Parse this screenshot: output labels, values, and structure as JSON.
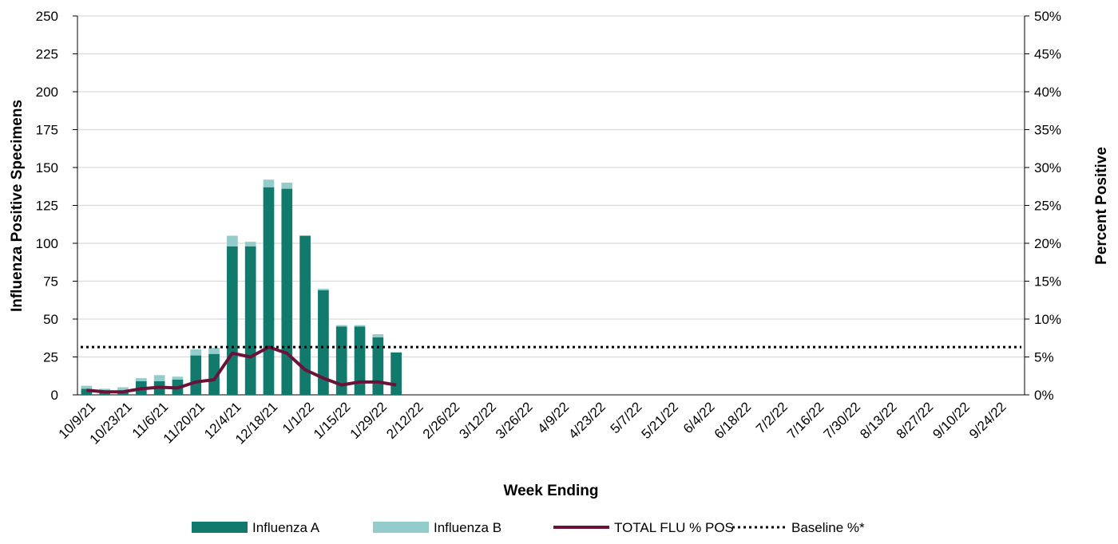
{
  "chart_data": {
    "type": "bar",
    "stacked": true,
    "x_label": "Week Ending",
    "y_label": "Influenza Positive Specimens",
    "y2_label": "Percent Positive",
    "categories": [
      "10/9/21",
      null,
      "10/23/21",
      null,
      "11/6/21",
      null,
      "11/20/21",
      null,
      "12/4/21",
      null,
      "12/18/21",
      null,
      "1/1/22",
      null,
      "1/15/22",
      null,
      "1/29/22",
      null,
      "2/12/22",
      null,
      "2/26/22",
      null,
      "3/12/22",
      null,
      "3/26/22",
      null,
      "4/9/22",
      null,
      "4/23/22",
      null,
      "5/7/22",
      null,
      "5/21/22",
      null,
      "6/4/22",
      null,
      "6/18/22",
      null,
      "7/2/22",
      null,
      "7/16/22",
      null,
      "7/30/22",
      null,
      "8/13/22",
      null,
      "8/27/22",
      null,
      "9/10/22",
      null,
      "9/24/22",
      null
    ],
    "series": [
      {
        "name": "Influenza A",
        "color": "#127a6d",
        "values": [
          4,
          3,
          3,
          9,
          9,
          10,
          26,
          27,
          98,
          98,
          137,
          136,
          105,
          69,
          45,
          45,
          38,
          28,
          null,
          null,
          null,
          null,
          null,
          null,
          null,
          null,
          null,
          null,
          null,
          null,
          null,
          null,
          null,
          null,
          null,
          null,
          null,
          null,
          null,
          null,
          null,
          null,
          null,
          null,
          null,
          null,
          null,
          null,
          null,
          null,
          null,
          null
        ]
      },
      {
        "name": "Influenza B",
        "color": "#93cccb",
        "values": [
          2,
          1,
          2,
          2,
          4,
          2,
          4,
          4,
          7,
          3,
          5,
          4,
          0,
          1,
          1,
          1,
          2,
          0,
          null,
          null,
          null,
          null,
          null,
          null,
          null,
          null,
          null,
          null,
          null,
          null,
          null,
          null,
          null,
          null,
          null,
          null,
          null,
          null,
          null,
          null,
          null,
          null,
          null,
          null,
          null,
          null,
          null,
          null,
          null,
          null,
          null,
          null
        ]
      },
      {
        "name": "TOTAL FLU % POS",
        "color": "#6b1238",
        "type": "line",
        "axis": "y2",
        "values": [
          0.6,
          0.4,
          0.4,
          0.8,
          1.0,
          0.9,
          1.7,
          2.0,
          5.5,
          5.0,
          6.3,
          5.5,
          3.3,
          2.2,
          1.3,
          1.7,
          1.7,
          1.3,
          null,
          null,
          null,
          null,
          null,
          null,
          null,
          null,
          null,
          null,
          null,
          null,
          null,
          null,
          null,
          null,
          null,
          null,
          null,
          null,
          null,
          null,
          null,
          null,
          null,
          null,
          null,
          null,
          null,
          null,
          null,
          null,
          null,
          null
        ]
      }
    ],
    "baseline": {
      "name": "Baseline %*",
      "value": 6.3,
      "color": "#000000",
      "axis": "y2"
    },
    "ylim": [
      0,
      250
    ],
    "yticks": [
      0,
      25,
      50,
      75,
      100,
      125,
      150,
      175,
      200,
      225,
      250
    ],
    "y2lim": [
      0,
      50
    ],
    "y2ticks": [
      {
        "value": 0,
        "label": "0%"
      },
      {
        "value": 5,
        "label": "5%"
      },
      {
        "value": 10,
        "label": "10%"
      },
      {
        "value": 15,
        "label": "15%"
      },
      {
        "value": 20,
        "label": "20%"
      },
      {
        "value": 25,
        "label": "25%"
      },
      {
        "value": 30,
        "label": "30%"
      },
      {
        "value": 35,
        "label": "35%"
      },
      {
        "value": 40,
        "label": "40%"
      },
      {
        "value": 45,
        "label": "45%"
      },
      {
        "value": 50,
        "label": "50%"
      }
    ],
    "grid": true,
    "legend": "bottom"
  }
}
